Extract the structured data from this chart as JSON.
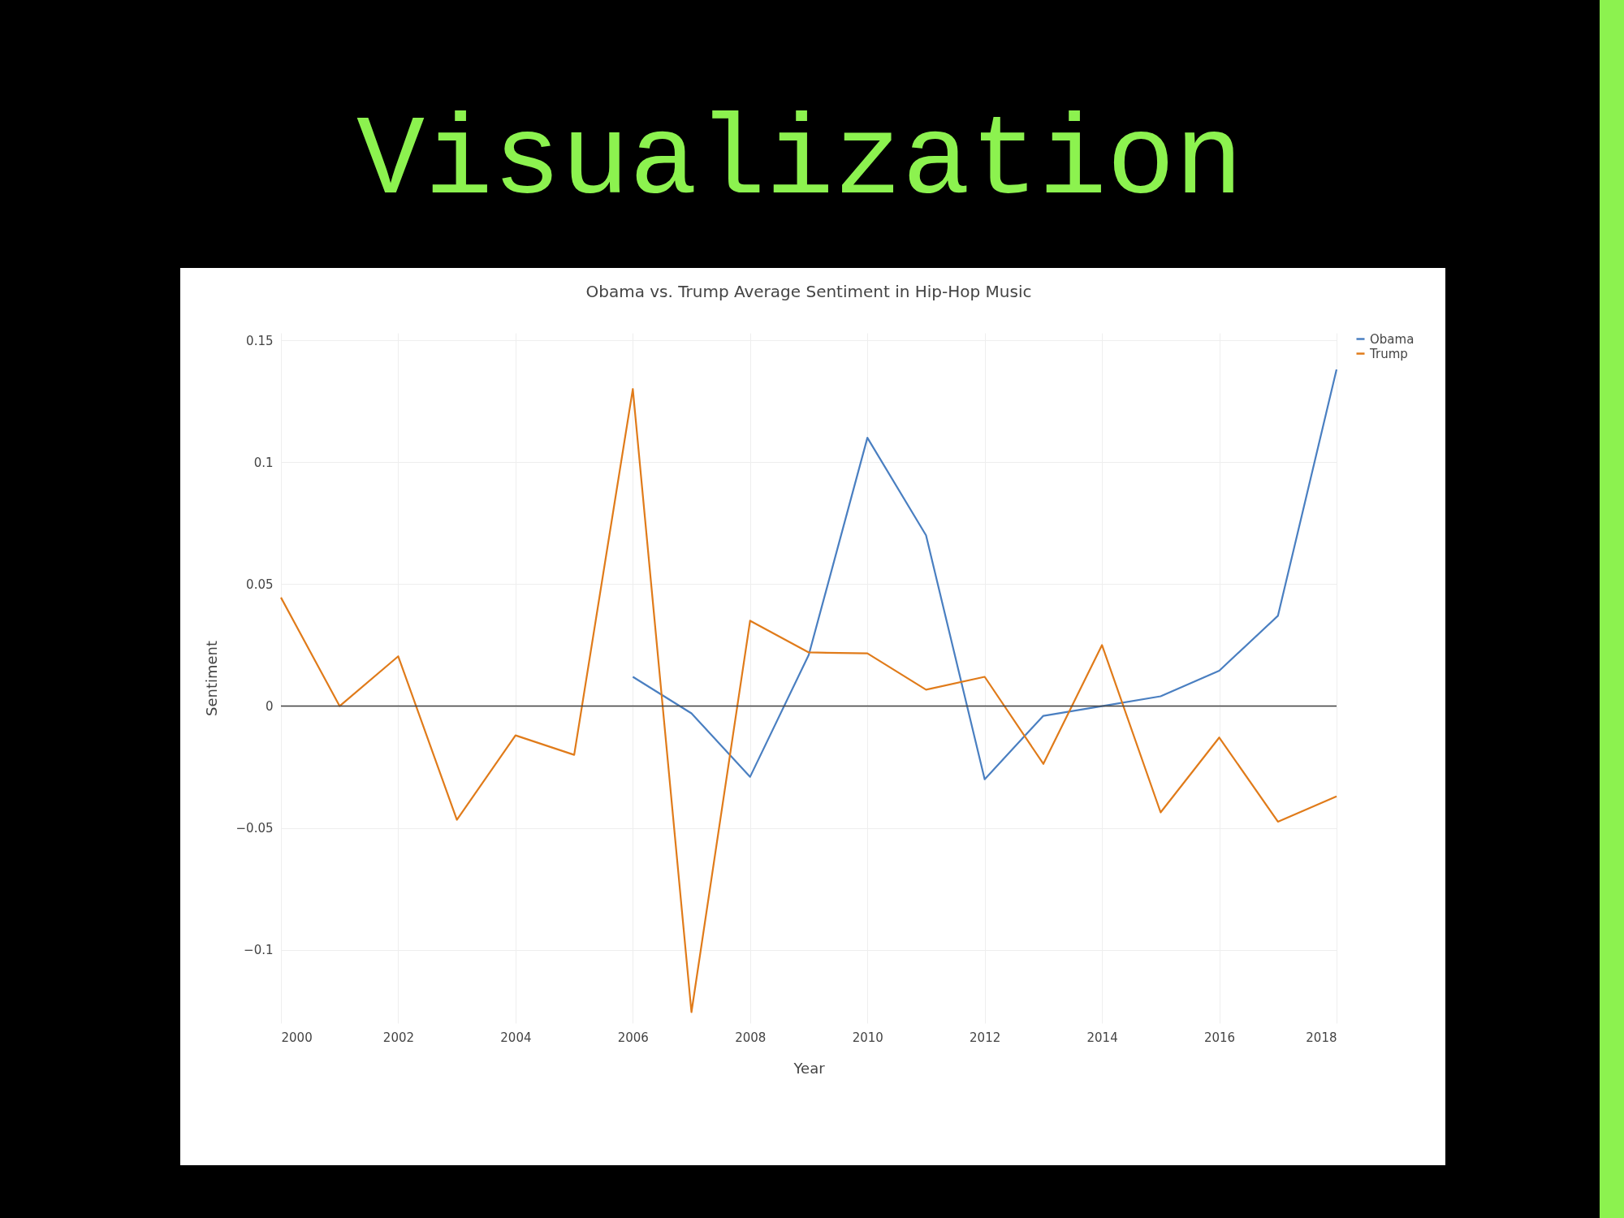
{
  "chart_data": {
    "type": "line",
    "title": "Obama vs. Trump Average Sentiment in Hip-Hop Music",
    "xlabel": "Year",
    "ylabel": "Sentiment",
    "annotations": [
      "Visualization"
    ],
    "x": [
      2000,
      2001,
      2002,
      2003,
      2004,
      2005,
      2006,
      2007,
      2008,
      2009,
      2010,
      2011,
      2012,
      2013,
      2014,
      2015,
      2016,
      2017,
      2018
    ],
    "series": [
      {
        "name": "Obama",
        "color": "#4a7fc1",
        "values": [
          null,
          null,
          null,
          null,
          null,
          null,
          0.012,
          -0.003,
          -0.029,
          0.021,
          0.11,
          0.07,
          -0.03,
          -0.004,
          0.0,
          0.004,
          0.0145,
          0.037,
          0.138
        ]
      },
      {
        "name": "Trump",
        "color": "#e07b1a",
        "values": [
          0.0445,
          0.0,
          0.0204,
          -0.0466,
          -0.012,
          -0.02,
          0.13,
          -0.1255,
          0.035,
          0.022,
          0.0216,
          0.0067,
          0.012,
          -0.0237,
          0.025,
          -0.0436,
          -0.0129,
          -0.0474,
          -0.037
        ]
      }
    ],
    "xlim": [
      2000,
      2018
    ],
    "xticks": [
      2000,
      2002,
      2004,
      2006,
      2008,
      2010,
      2012,
      2014,
      2016,
      2018
    ],
    "ylim": [
      -0.13,
      0.153
    ],
    "yticks": [
      {
        "value": -0.1,
        "label": "−0.1"
      },
      {
        "value": -0.05,
        "label": "−0.05"
      },
      0,
      0.05,
      0.1,
      0.15
    ],
    "ref_lines": [
      {
        "axis": "y",
        "value": 0,
        "color": "#444444"
      }
    ],
    "grid": true,
    "legend": "top right",
    "marker": "none",
    "line_style": "solid"
  }
}
